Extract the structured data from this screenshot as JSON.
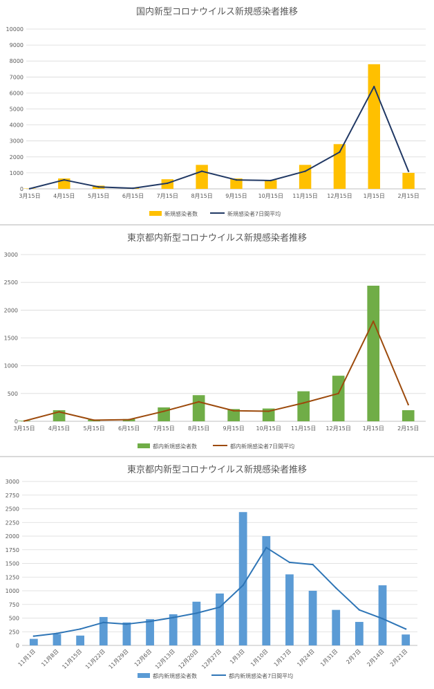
{
  "charts": [
    {
      "title": "国内新型コロナウイルス新規感染者推移",
      "legend": {
        "bar": "新規感染者数",
        "line": "新規感染者7日間平均"
      },
      "colors": {
        "bar": "#ffc000",
        "line": "#203864"
      }
    },
    {
      "title": "東京都内新型コロナウイルス新規感染者推移",
      "legend": {
        "bar": "都内新規感染者数",
        "line": "都内新規感染者7日間平均"
      },
      "colors": {
        "bar": "#70ad47",
        "line": "#9c4a0c"
      }
    },
    {
      "title": "東京都内新型コロナウイルス新規感染者推移",
      "legend": {
        "bar": "都内新規感染者数",
        "line": "都内新規感染者7日間平均"
      },
      "colors": {
        "bar": "#5b9bd5",
        "line": "#2e75b6"
      }
    }
  ],
  "chart_data": [
    {
      "type": "bar",
      "title": "国内新型コロナウイルス新規感染者推移",
      "categories": [
        "3月15日",
        "4月15日",
        "5月15日",
        "6月15日",
        "7月15日",
        "8月15日",
        "9月15日",
        "10月15日",
        "11月15日",
        "12月15日",
        "1月15日",
        "2月15日"
      ],
      "ylim": [
        0,
        10000
      ],
      "yticks": [
        0,
        1000,
        2000,
        3000,
        4000,
        5000,
        6000,
        7000,
        8000,
        9000,
        10000
      ],
      "grid": true,
      "legend_position": "bottom",
      "series": [
        {
          "name": "新規感染者数",
          "kind": "bar",
          "values": [
            20,
            650,
            200,
            60,
            600,
            1500,
            650,
            550,
            1500,
            2800,
            7800,
            1000
          ]
        },
        {
          "name": "新規感染者7日間平均",
          "kind": "line",
          "values": [
            10,
            560,
            120,
            40,
            350,
            1100,
            560,
            520,
            1100,
            2300,
            6400,
            1100
          ]
        }
      ]
    },
    {
      "type": "bar",
      "title": "東京都内新型コロナウイルス新規感染者推移",
      "categories": [
        "3月15日",
        "4月15日",
        "5月15日",
        "6月15日",
        "7月15日",
        "8月15日",
        "9月15日",
        "10月15日",
        "11月15日",
        "12月15日",
        "1月15日",
        "2月15日"
      ],
      "ylim": [
        0,
        3000
      ],
      "yticks": [
        0,
        500,
        1000,
        1500,
        2000,
        2500,
        3000
      ],
      "grid": true,
      "legend_position": "bottom",
      "series": [
        {
          "name": "都内新規感染者数",
          "kind": "bar",
          "values": [
            10,
            200,
            30,
            40,
            250,
            470,
            220,
            230,
            540,
            820,
            2440,
            200
          ]
        },
        {
          "name": "都内新規感染者7日間平均",
          "kind": "line",
          "values": [
            5,
            170,
            20,
            30,
            180,
            350,
            190,
            180,
            330,
            500,
            1800,
            300
          ]
        }
      ]
    },
    {
      "type": "bar",
      "title": "東京都内新型コロナウイルス新規感染者推移",
      "categories": [
        "11月1日",
        "11月8日",
        "11月15日",
        "11月22日",
        "11月29日",
        "12月6日",
        "12月13日",
        "12月20日",
        "12月27日",
        "1月3日",
        "1月10日",
        "1月17日",
        "1月24日",
        "1月31日",
        "2月7日",
        "2月14日",
        "2月21日"
      ],
      "ylim": [
        0,
        3000
      ],
      "yticks": [
        0,
        250,
        500,
        750,
        1000,
        1250,
        1500,
        1750,
        2000,
        2250,
        2500,
        2750,
        3000
      ],
      "grid": true,
      "legend_position": "bottom",
      "series": [
        {
          "name": "都内新規感染者数",
          "kind": "bar",
          "values": [
            120,
            210,
            180,
            520,
            420,
            480,
            570,
            800,
            950,
            2440,
            2000,
            1300,
            1000,
            650,
            430,
            1100,
            200
          ]
        },
        {
          "name": "都内新規感染者7日間平均",
          "kind": "line",
          "values": [
            170,
            220,
            300,
            420,
            390,
            440,
            510,
            590,
            700,
            1100,
            1790,
            1520,
            1480,
            1050,
            650,
            490,
            300
          ]
        }
      ]
    }
  ]
}
